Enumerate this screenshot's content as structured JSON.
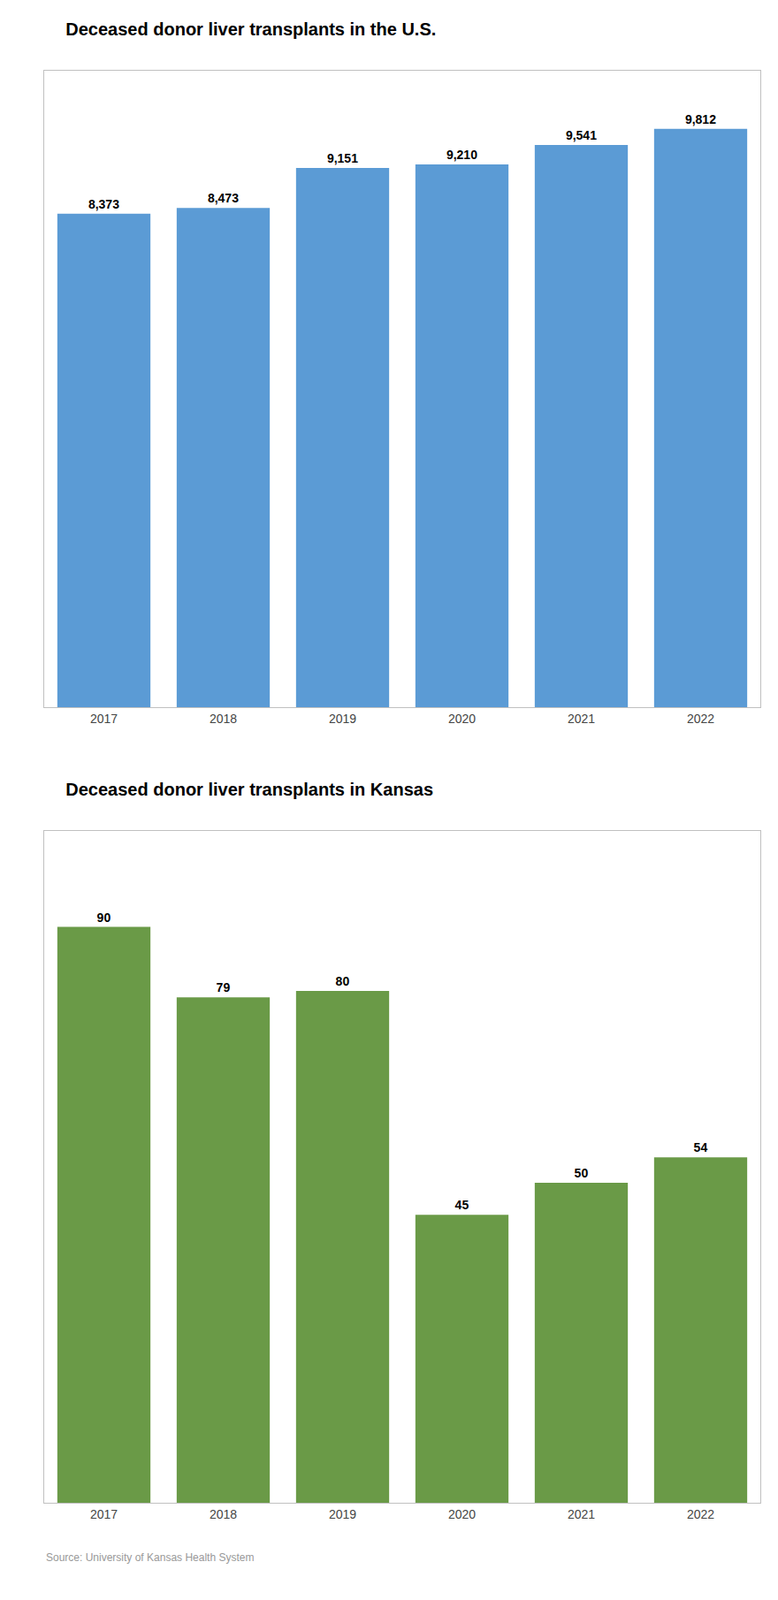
{
  "chart_data": [
    {
      "type": "bar",
      "title": "Deceased donor liver transplants in the U.S.",
      "categories": [
        "2017",
        "2018",
        "2019",
        "2020",
        "2021",
        "2022"
      ],
      "values": [
        8373,
        8473,
        9151,
        9210,
        9541,
        9812
      ],
      "value_labels": [
        "8,373",
        "8,473",
        "9,151",
        "9,210",
        "9,541",
        "9,812"
      ],
      "color": "#5b9bd5",
      "ylim": [
        0,
        10800
      ],
      "grid": false,
      "data_labels": true,
      "tick_labels": "x"
    },
    {
      "type": "bar",
      "title": "Deceased donor liver transplants in Kansas",
      "categories": [
        "2017",
        "2018",
        "2019",
        "2020",
        "2021",
        "2022"
      ],
      "values": [
        90,
        79,
        80,
        45,
        50,
        54
      ],
      "color": "#6a9a47",
      "ylim": [
        0,
        105
      ],
      "grid": false,
      "data_labels": true,
      "tick_labels": "x",
      "annotations": [
        "Source: University of Kansas Health System"
      ]
    }
  ]
}
